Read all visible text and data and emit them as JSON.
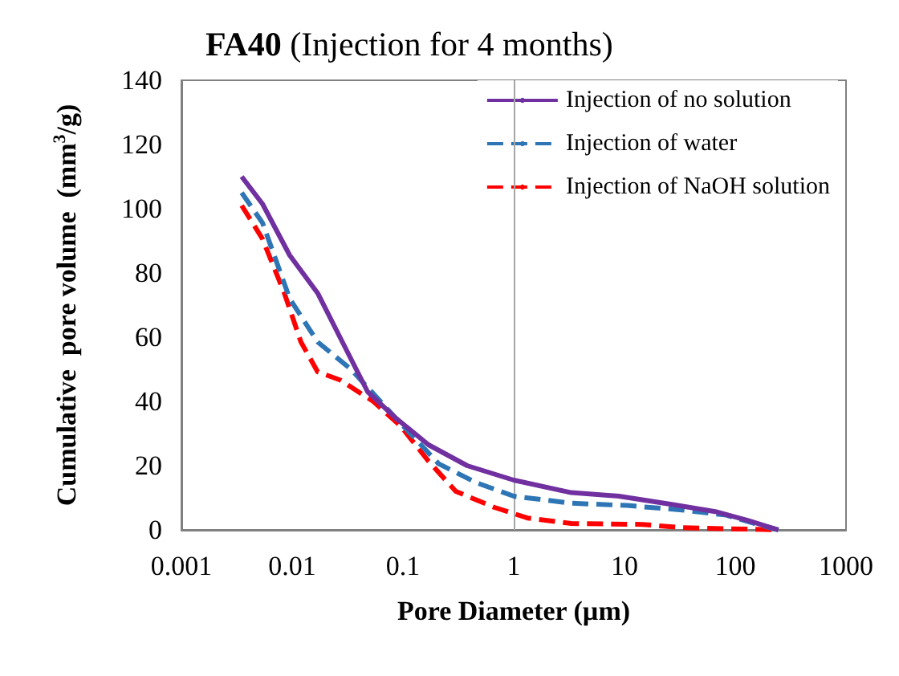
{
  "chart_data": {
    "type": "line",
    "title": "FA40 (Injection for 4 months)",
    "xlabel": "Pore Diameter (µm)",
    "ylabel": "Cumulative  pore volume  (mm$^{3}$/g)",
    "log": "x",
    "xlim": [
      0.001,
      1000
    ],
    "xticks": [
      0.001,
      0.01,
      0.1,
      1,
      10,
      100,
      1000
    ],
    "ylim": [
      0,
      140
    ],
    "yticks": [
      0,
      20,
      40,
      60,
      80,
      100,
      120,
      140
    ],
    "grid": false,
    "legend": "top right",
    "marker": "none",
    "ref_lines": [
      {
        "axis": "x",
        "value": 1,
        "color": "#a6a6a6"
      }
    ],
    "series": [
      {
        "name": "Injection of no solution",
        "color": "#7030a0",
        "line_style": "solid",
        "x": [
          0.0035,
          0.0054,
          0.0095,
          0.017,
          0.027,
          0.048,
          0.085,
          0.17,
          0.38,
          1,
          3.3,
          8.9,
          26,
          66,
          131,
          245
        ],
        "values": [
          110,
          101.5,
          85.5,
          73.7,
          60,
          43,
          35,
          26.5,
          20,
          15.5,
          11.6,
          10.5,
          8,
          5.7,
          2.9,
          0
        ]
      },
      {
        "name": "Injection of water",
        "color": "#2e75b6",
        "line_style": "dashed",
        "x": [
          0.0035,
          0.0054,
          0.0095,
          0.017,
          0.034,
          0.085,
          0.21,
          0.46,
          1,
          3.3,
          10.5,
          33,
          83,
          148,
          245
        ],
        "values": [
          105,
          95.6,
          72,
          58.5,
          50,
          35,
          20.6,
          14.7,
          10.5,
          8.3,
          7.6,
          6.2,
          4.6,
          2,
          0
        ]
      },
      {
        "name": "Injection of NaOH solution",
        "color": "#ff0000",
        "line_style": "dashed",
        "x": [
          0.0035,
          0.0054,
          0.0085,
          0.012,
          0.017,
          0.027,
          0.054,
          0.095,
          0.17,
          0.3,
          0.67,
          1.33,
          3.3,
          14.5,
          33,
          245
        ],
        "values": [
          101,
          90.6,
          73.7,
          58.5,
          49.2,
          46.7,
          40,
          32.4,
          21.4,
          12,
          7,
          3.7,
          2,
          1.7,
          0.7,
          0
        ]
      }
    ]
  }
}
